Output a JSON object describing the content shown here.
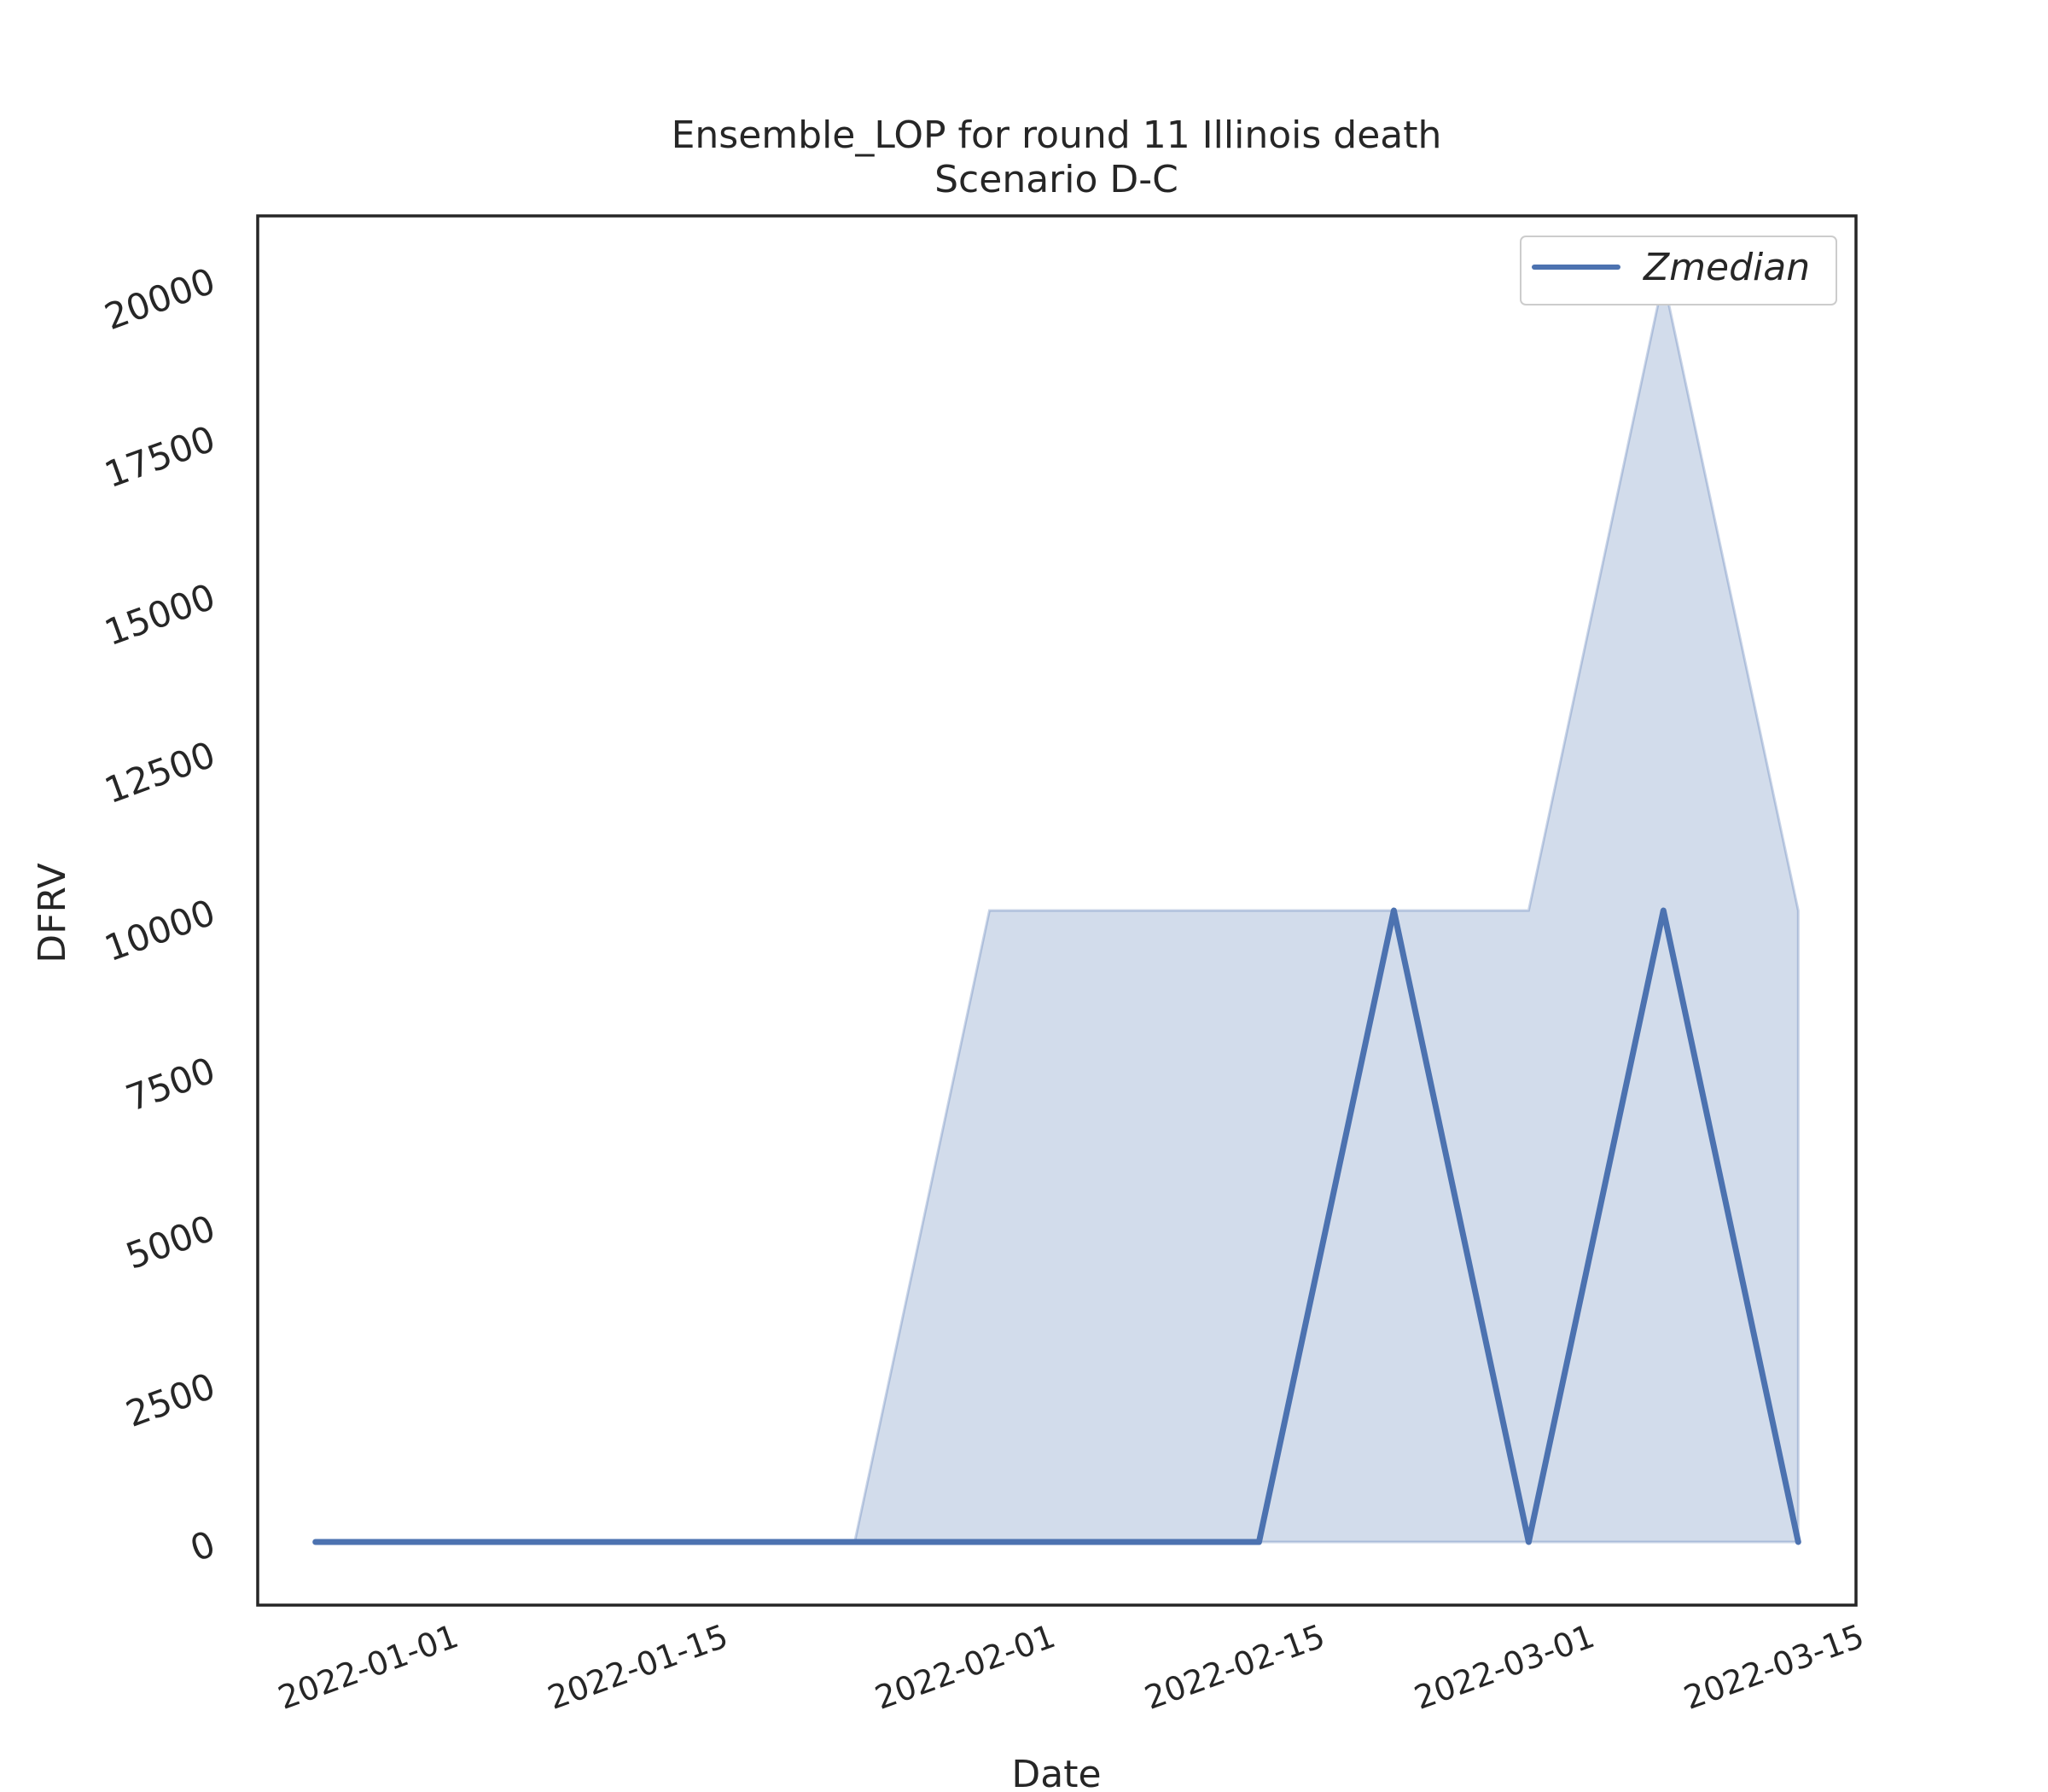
{
  "chart_data": {
    "type": "line",
    "title": "Ensemble_LOP for round 11 Illinois death",
    "subtitle": "Scenario D-C",
    "xlabel": "Date",
    "ylabel": "DFRV",
    "x_dates": [
      "2021-12-25",
      "2022-01-01",
      "2022-01-08",
      "2022-01-15",
      "2022-01-22",
      "2022-01-29",
      "2022-02-05",
      "2022-02-12",
      "2022-02-19",
      "2022-02-26",
      "2022-03-05",
      "2022-03-12"
    ],
    "series": [
      {
        "name": "Zmedian",
        "values": [
          0,
          0,
          0,
          0,
          0,
          0,
          0,
          0,
          10000,
          0,
          10000,
          0
        ],
        "color": "#4c72b0"
      }
    ],
    "band": {
      "lower": [
        0,
        0,
        0,
        0,
        0,
        0,
        0,
        0,
        0,
        0,
        0,
        0
      ],
      "upper": [
        0,
        0,
        0,
        0,
        0,
        10000,
        10000,
        10000,
        10000,
        10000,
        20000,
        10000
      ],
      "color": "#4c72b0"
    },
    "yticks": [
      0,
      2500,
      5000,
      7500,
      10000,
      12500,
      15000,
      17500,
      20000
    ],
    "ytick_labels": [
      "0",
      "2500",
      "5000",
      "7500",
      "10000",
      "12500",
      "15000",
      "17500",
      "20000"
    ],
    "xticks": [
      "2022-01-01",
      "2022-01-15",
      "2022-02-01",
      "2022-02-15",
      "2022-03-01",
      "2022-03-15"
    ],
    "xtick_labels": [
      "2022-01-01",
      "2022-01-15",
      "2022-02-01",
      "2022-02-15",
      "2022-03-01",
      "2022-03-15"
    ],
    "ylim": [
      -1000,
      21000
    ],
    "xlim": [
      "2021-12-22",
      "2022-03-15"
    ],
    "grid": false,
    "legend": "top-right"
  }
}
